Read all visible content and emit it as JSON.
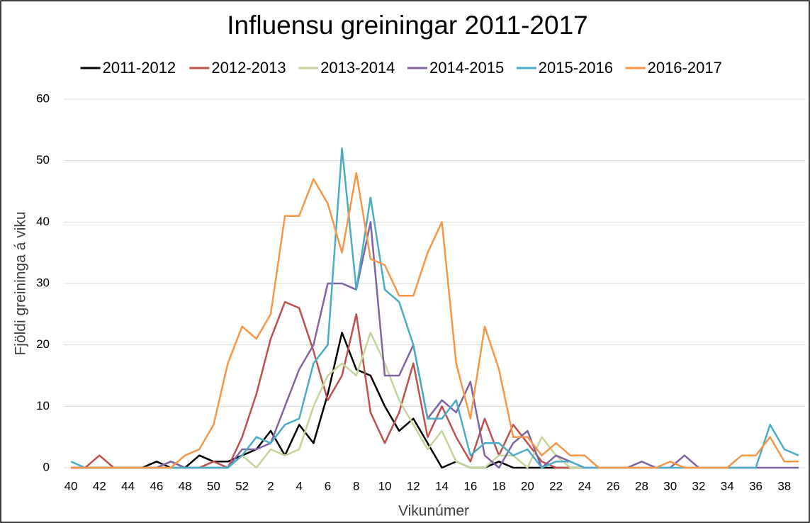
{
  "chart_data": {
    "type": "line",
    "title": "Influensu greiningar 2011-2017",
    "x_label": "Vikunúmer",
    "y_label": "Fjöldi greininga á viku",
    "categories": [
      "40",
      null,
      "42",
      null,
      "44",
      null,
      "46",
      null,
      "48",
      null,
      "50",
      null,
      "52",
      null,
      "2",
      null,
      "4",
      null,
      "6",
      null,
      "8",
      null,
      "10",
      null,
      "12",
      null,
      "14",
      null,
      "16",
      null,
      "18",
      null,
      "20",
      null,
      "22",
      null,
      "24",
      null,
      "26",
      null,
      "28",
      null,
      "30",
      null,
      "32",
      null,
      "34",
      null,
      "36",
      null,
      "38",
      null
    ],
    "ylim": [
      0,
      60
    ],
    "yticks": [
      0,
      10,
      20,
      30,
      40,
      50,
      60
    ],
    "grid": true,
    "legend": "top",
    "series": [
      {
        "name": "2011-2012",
        "color": "#000000",
        "values": [
          0,
          0,
          0,
          0,
          0,
          0,
          1,
          0,
          0,
          2,
          1,
          1,
          2,
          3,
          6,
          2,
          7,
          4,
          12,
          22,
          16,
          15,
          10,
          6,
          8,
          4,
          0,
          1,
          0,
          0,
          1,
          0,
          0,
          0,
          0,
          0,
          0,
          null,
          null,
          null,
          null,
          null,
          null,
          null,
          null,
          null,
          null,
          null,
          null,
          null,
          null,
          null
        ]
      },
      {
        "name": "2012-2013",
        "color": "#c0504d",
        "values": [
          0,
          0,
          2,
          0,
          0,
          0,
          0,
          1,
          0,
          0,
          1,
          0,
          5,
          12,
          21,
          27,
          26,
          19,
          11,
          15,
          25,
          9,
          4,
          9,
          17,
          5,
          10,
          5,
          1,
          8,
          2,
          7,
          4,
          1,
          0,
          0,
          0,
          null,
          null,
          null,
          null,
          null,
          null,
          null,
          null,
          null,
          null,
          null,
          null,
          null,
          null,
          null
        ]
      },
      {
        "name": "2013-2014",
        "color": "#c3d69b",
        "values": [
          0,
          0,
          0,
          0,
          0,
          0,
          0,
          0,
          0,
          0,
          0,
          0,
          2,
          0,
          3,
          2,
          3,
          10,
          15,
          17,
          15,
          22,
          17,
          11,
          7,
          3,
          6,
          1,
          0,
          0,
          2,
          2,
          0,
          5,
          2,
          0,
          0,
          null,
          null,
          null,
          null,
          null,
          null,
          null,
          null,
          null,
          null,
          null,
          null,
          null,
          null,
          null
        ]
      },
      {
        "name": "2014-2015",
        "color": "#8064a2",
        "values": [
          0,
          0,
          0,
          0,
          0,
          0,
          0,
          1,
          0,
          0,
          0,
          0,
          3,
          3,
          4,
          10,
          16,
          20,
          30,
          30,
          29,
          40,
          15,
          15,
          20,
          8,
          11,
          9,
          14,
          2,
          0,
          4,
          6,
          0,
          2,
          1,
          0,
          0,
          0,
          0,
          1,
          0,
          0,
          2,
          0,
          0,
          0,
          0,
          0,
          0,
          0,
          0
        ]
      },
      {
        "name": "2015-2016",
        "color": "#4bacc6",
        "values": [
          1,
          0,
          0,
          0,
          0,
          0,
          0,
          0,
          0,
          0,
          0,
          0,
          2,
          5,
          4,
          7,
          8,
          17,
          20,
          52,
          29,
          44,
          29,
          27,
          20,
          8,
          8,
          11,
          2,
          4,
          4,
          2,
          3,
          0,
          1,
          1,
          0,
          0,
          0,
          0,
          0,
          0,
          0,
          0,
          0,
          0,
          0,
          0,
          0,
          7,
          3,
          2
        ]
      },
      {
        "name": "2016-2017",
        "color": "#f79646",
        "values": [
          0,
          0,
          0,
          0,
          0,
          0,
          0,
          0,
          2,
          3,
          7,
          17,
          23,
          21,
          25,
          41,
          41,
          47,
          43,
          35,
          48,
          34,
          33,
          28,
          28,
          35,
          40,
          17,
          8,
          23,
          16,
          5,
          5,
          2,
          4,
          2,
          2,
          0,
          0,
          0,
          0,
          0,
          1,
          0,
          0,
          0,
          0,
          2,
          2,
          5,
          1,
          1
        ]
      }
    ]
  }
}
